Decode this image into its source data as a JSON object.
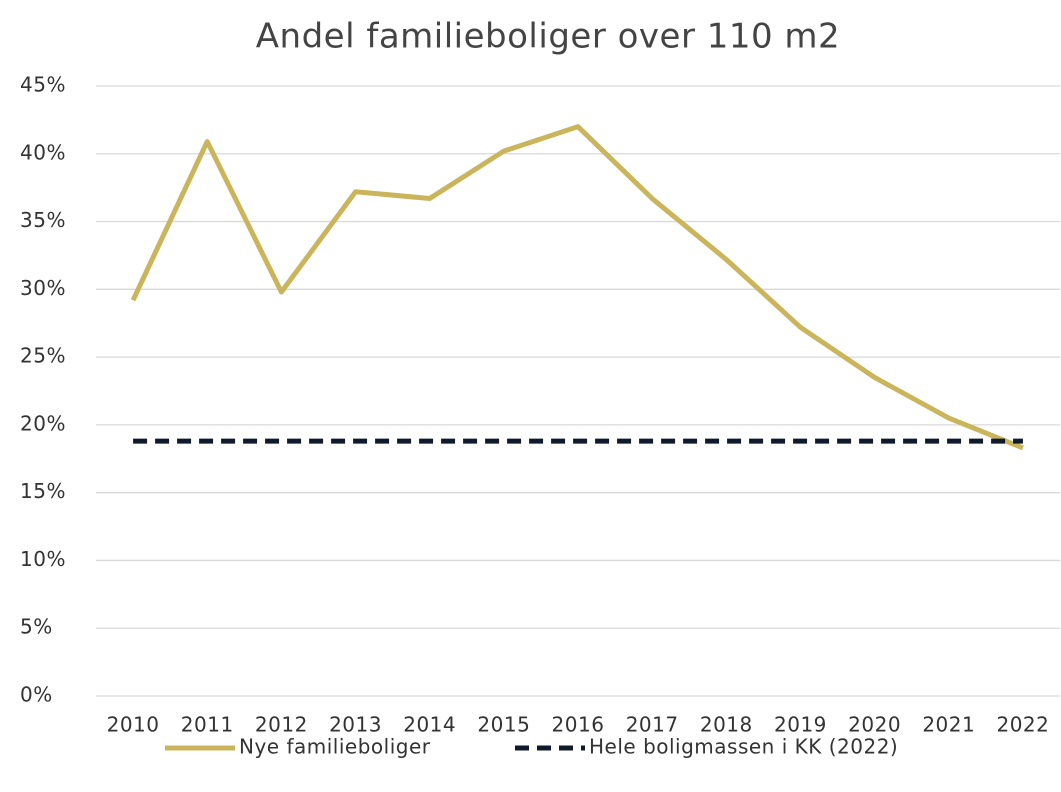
{
  "chart_data": {
    "type": "line",
    "title": "Andel familieboliger over 110 m2",
    "categories": [
      "2010",
      "2011",
      "2012",
      "2013",
      "2014",
      "2015",
      "2016",
      "2017",
      "2018",
      "2019",
      "2020",
      "2021",
      "2022"
    ],
    "series": [
      {
        "name": "Nye familieboliger",
        "color": "#cbb55c",
        "dash": false,
        "values": [
          29.2,
          40.9,
          29.8,
          37.2,
          36.7,
          40.2,
          42.0,
          36.7,
          32.2,
          27.2,
          23.5,
          20.5,
          18.3
        ]
      },
      {
        "name": "Hele boligmassen i KK (2022)",
        "color": "#0f1a2c",
        "dash": true,
        "values": [
          18.8,
          18.8,
          18.8,
          18.8,
          18.8,
          18.8,
          18.8,
          18.8,
          18.8,
          18.8,
          18.8,
          18.8,
          18.8
        ]
      }
    ],
    "ylim": [
      0,
      45
    ],
    "yticks": [
      {
        "value": 0,
        "label": "0%"
      },
      {
        "value": 5,
        "label": "5%"
      },
      {
        "value": 10,
        "label": "10%"
      },
      {
        "value": 15,
        "label": "15%"
      },
      {
        "value": 20,
        "label": "20%"
      },
      {
        "value": 25,
        "label": "25%"
      },
      {
        "value": 30,
        "label": "30%"
      },
      {
        "value": 35,
        "label": "35%"
      },
      {
        "value": 40,
        "label": "40%"
      },
      {
        "value": 45,
        "label": "45%"
      }
    ],
    "grid": true,
    "legend": "bottom"
  }
}
